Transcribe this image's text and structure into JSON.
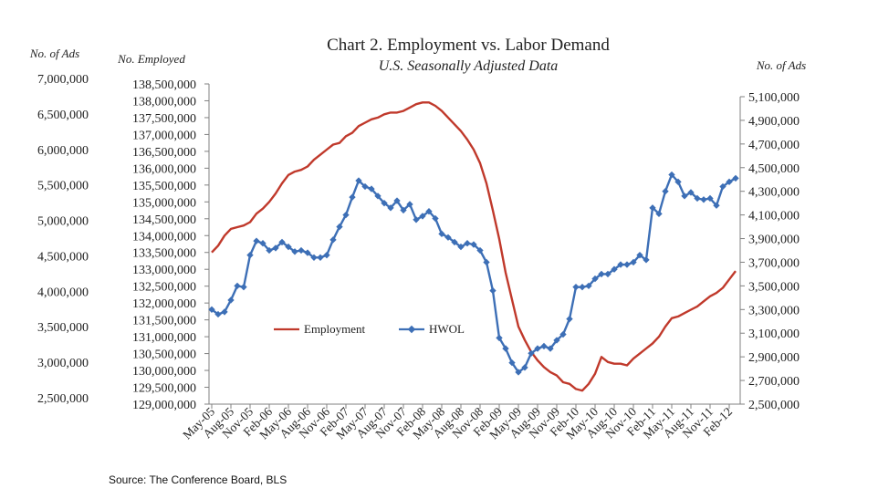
{
  "chart_data": {
    "type": "line",
    "title": "Chart 2. Employment vs. Labor Demand",
    "subtitle": "U.S. Seasonally Adjusted Data",
    "source": "Source: The Conference Board, BLS",
    "colors": {
      "employment": "#c0392b",
      "hwol": "#3d6fb6"
    },
    "axes": {
      "outer_left": {
        "label": "No. of Ads",
        "ylim": [
          2500000,
          7000000
        ],
        "ticks": [
          "7,000,000",
          "6,500,000",
          "6,000,000",
          "5,500,000",
          "5,000,000",
          "4,500,000",
          "4,000,000",
          "3,500,000",
          "3,000,000",
          "2,500,000"
        ]
      },
      "inner_left": {
        "label": "No. Employed",
        "ylim": [
          129000000,
          138500000
        ],
        "ticks": [
          "138,500,000",
          "138,000,000",
          "137,500,000",
          "137,000,000",
          "136,500,000",
          "136,000,000",
          "135,500,000",
          "135,000,000",
          "134,500,000",
          "134,000,000",
          "133,500,000",
          "133,000,000",
          "132,500,000",
          "132,000,000",
          "131,500,000",
          "131,000,000",
          "130,500,000",
          "130,000,000",
          "129,500,000",
          "129,000,000"
        ]
      },
      "right": {
        "label": "No. of Ads",
        "ylim": [
          2500000,
          5200000
        ],
        "ticks": [
          "5,100,000",
          "4,900,000",
          "4,700,000",
          "4,500,000",
          "4,300,000",
          "4,100,000",
          "3,900,000",
          "3,700,000",
          "3,500,000",
          "3,300,000",
          "3,100,000",
          "2,900,000",
          "2,700,000",
          "2,500,000"
        ]
      },
      "x": {
        "ticks": [
          "May-05",
          "Aug-05",
          "Nov-05",
          "Feb-06",
          "May-06",
          "Aug-06",
          "Nov-06",
          "Feb-07",
          "May-07",
          "Aug-07",
          "Nov-07",
          "Feb-08",
          "May-08",
          "Aug-08",
          "Nov-08",
          "Feb-09",
          "May-09",
          "Aug-09",
          "Nov-09",
          "Feb-10",
          "May-10",
          "Aug-10",
          "Nov-10",
          "Feb-11",
          "May-11",
          "Aug-11",
          "Nov-11",
          "Feb-12"
        ]
      }
    },
    "legend": {
      "position": "center-left",
      "employment": "Employment",
      "hwol": "HWOL"
    },
    "x": [
      "May-05",
      "Jun-05",
      "Jul-05",
      "Aug-05",
      "Sep-05",
      "Oct-05",
      "Nov-05",
      "Dec-05",
      "Jan-06",
      "Feb-06",
      "Mar-06",
      "Apr-06",
      "May-06",
      "Jun-06",
      "Jul-06",
      "Aug-06",
      "Sep-06",
      "Oct-06",
      "Nov-06",
      "Dec-06",
      "Jan-07",
      "Feb-07",
      "Mar-07",
      "Apr-07",
      "May-07",
      "Jun-07",
      "Jul-07",
      "Aug-07",
      "Sep-07",
      "Oct-07",
      "Nov-07",
      "Dec-07",
      "Jan-08",
      "Feb-08",
      "Mar-08",
      "Apr-08",
      "May-08",
      "Jun-08",
      "Jul-08",
      "Aug-08",
      "Sep-08",
      "Oct-08",
      "Nov-08",
      "Dec-08",
      "Jan-09",
      "Feb-09",
      "Mar-09",
      "Apr-09",
      "May-09",
      "Jun-09",
      "Jul-09",
      "Aug-09",
      "Sep-09",
      "Oct-09",
      "Nov-09",
      "Dec-09",
      "Jan-10",
      "Feb-10",
      "Mar-10",
      "Apr-10",
      "May-10",
      "Jun-10",
      "Jul-10",
      "Aug-10",
      "Sep-10",
      "Oct-10",
      "Nov-10",
      "Dec-10",
      "Jan-11",
      "Feb-11",
      "Mar-11",
      "Apr-11",
      "May-11",
      "Jun-11",
      "Jul-11",
      "Aug-11",
      "Sep-11",
      "Oct-11",
      "Nov-11",
      "Dec-11",
      "Jan-12",
      "Feb-12",
      "Mar-12"
    ],
    "series": [
      {
        "name": "Employment",
        "axis": "inner_left",
        "values": [
          133500000,
          133700000,
          134000000,
          134200000,
          134250000,
          134300000,
          134400000,
          134650000,
          134800000,
          135000000,
          135250000,
          135550000,
          135800000,
          135900000,
          135950000,
          136050000,
          136250000,
          136400000,
          136550000,
          136700000,
          136750000,
          136950000,
          137050000,
          137250000,
          137350000,
          137450000,
          137500000,
          137600000,
          137650000,
          137650000,
          137700000,
          137800000,
          137900000,
          137950000,
          137950000,
          137850000,
          137700000,
          137500000,
          137300000,
          137100000,
          136850000,
          136550000,
          136150000,
          135550000,
          134750000,
          133900000,
          132900000,
          132100000,
          131300000,
          130900000,
          130550000,
          130300000,
          130100000,
          129950000,
          129850000,
          129650000,
          129600000,
          129450000,
          129400000,
          129600000,
          129900000,
          130400000,
          130250000,
          130200000,
          130200000,
          130150000,
          130350000,
          130500000,
          130650000,
          130800000,
          131000000,
          131300000,
          131550000,
          131600000,
          131700000,
          131800000,
          131900000,
          132050000,
          132200000,
          132300000,
          132450000,
          132700000,
          132950000
        ]
      },
      {
        "name": "HWOL",
        "axis": "right",
        "values": [
          3300000,
          3260000,
          3280000,
          3380000,
          3500000,
          3490000,
          3760000,
          3880000,
          3860000,
          3800000,
          3820000,
          3870000,
          3830000,
          3790000,
          3800000,
          3780000,
          3740000,
          3740000,
          3760000,
          3890000,
          4000000,
          4100000,
          4250000,
          4390000,
          4340000,
          4320000,
          4260000,
          4200000,
          4160000,
          4220000,
          4140000,
          4190000,
          4060000,
          4090000,
          4130000,
          4070000,
          3940000,
          3910000,
          3870000,
          3830000,
          3860000,
          3850000,
          3800000,
          3700000,
          3460000,
          3060000,
          2970000,
          2850000,
          2770000,
          2810000,
          2930000,
          2970000,
          2990000,
          2970000,
          3040000,
          3090000,
          3220000,
          3490000,
          3490000,
          3500000,
          3560000,
          3600000,
          3600000,
          3640000,
          3680000,
          3680000,
          3700000,
          3760000,
          3720000,
          4160000,
          4110000,
          4300000,
          4440000,
          4380000,
          4260000,
          4290000,
          4240000,
          4230000,
          4240000,
          4180000,
          4340000,
          4380000,
          4410000
        ]
      }
    ]
  }
}
